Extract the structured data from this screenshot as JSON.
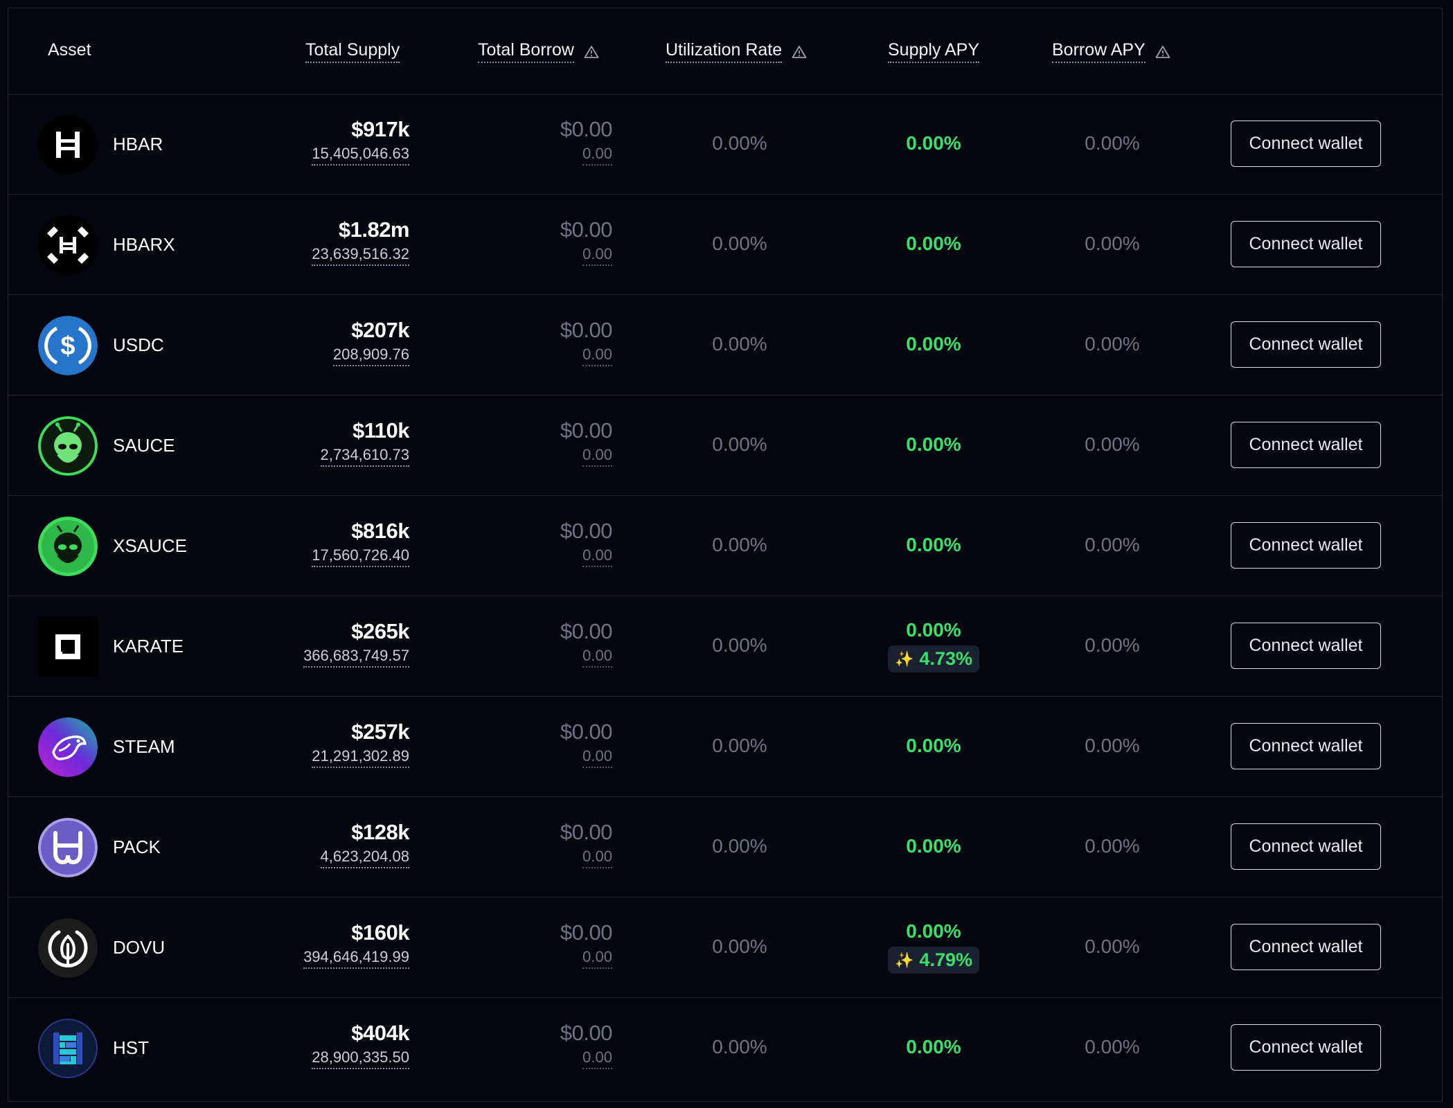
{
  "header": {
    "asset": "Asset",
    "total_supply": "Total Supply",
    "total_borrow": "Total Borrow",
    "utilization_rate": "Utilization Rate",
    "supply_apy": "Supply APY",
    "borrow_apy": "Borrow APY"
  },
  "button_label": "Connect wallet",
  "colors": {
    "background": "#02050f",
    "accent_green": "#39e06a",
    "muted": "#6d7585",
    "border": "#1f2636"
  },
  "rows": [
    {
      "name": "HBAR",
      "icon": "hbar-icon",
      "supply_usd": "$917k",
      "supply_amount": "15,405,046.63",
      "borrow_usd": "$0.00",
      "borrow_amount": "0.00",
      "utilization": "0.00%",
      "supply_apy": "0.00%",
      "bonus_apy": "",
      "borrow_apy": "0.00%"
    },
    {
      "name": "HBARX",
      "icon": "hbarx-icon",
      "supply_usd": "$1.82m",
      "supply_amount": "23,639,516.32",
      "borrow_usd": "$0.00",
      "borrow_amount": "0.00",
      "utilization": "0.00%",
      "supply_apy": "0.00%",
      "bonus_apy": "",
      "borrow_apy": "0.00%"
    },
    {
      "name": "USDC",
      "icon": "usdc-icon",
      "supply_usd": "$207k",
      "supply_amount": "208,909.76",
      "borrow_usd": "$0.00",
      "borrow_amount": "0.00",
      "utilization": "0.00%",
      "supply_apy": "0.00%",
      "bonus_apy": "",
      "borrow_apy": "0.00%"
    },
    {
      "name": "SAUCE",
      "icon": "sauce-icon",
      "supply_usd": "$110k",
      "supply_amount": "2,734,610.73",
      "borrow_usd": "$0.00",
      "borrow_amount": "0.00",
      "utilization": "0.00%",
      "supply_apy": "0.00%",
      "bonus_apy": "",
      "borrow_apy": "0.00%"
    },
    {
      "name": "XSAUCE",
      "icon": "xsauce-icon",
      "supply_usd": "$816k",
      "supply_amount": "17,560,726.40",
      "borrow_usd": "$0.00",
      "borrow_amount": "0.00",
      "utilization": "0.00%",
      "supply_apy": "0.00%",
      "bonus_apy": "",
      "borrow_apy": "0.00%"
    },
    {
      "name": "KARATE",
      "icon": "karate-icon",
      "supply_usd": "$265k",
      "supply_amount": "366,683,749.57",
      "borrow_usd": "$0.00",
      "borrow_amount": "0.00",
      "utilization": "0.00%",
      "supply_apy": "0.00%",
      "bonus_apy": "4.73%",
      "borrow_apy": "0.00%"
    },
    {
      "name": "STEAM",
      "icon": "steam-icon",
      "supply_usd": "$257k",
      "supply_amount": "21,291,302.89",
      "borrow_usd": "$0.00",
      "borrow_amount": "0.00",
      "utilization": "0.00%",
      "supply_apy": "0.00%",
      "bonus_apy": "",
      "borrow_apy": "0.00%"
    },
    {
      "name": "PACK",
      "icon": "pack-icon",
      "supply_usd": "$128k",
      "supply_amount": "4,623,204.08",
      "borrow_usd": "$0.00",
      "borrow_amount": "0.00",
      "utilization": "0.00%",
      "supply_apy": "0.00%",
      "bonus_apy": "",
      "borrow_apy": "0.00%"
    },
    {
      "name": "DOVU",
      "icon": "dovu-icon",
      "supply_usd": "$160k",
      "supply_amount": "394,646,419.99",
      "borrow_usd": "$0.00",
      "borrow_amount": "0.00",
      "utilization": "0.00%",
      "supply_apy": "0.00%",
      "bonus_apy": "4.79%",
      "borrow_apy": "0.00%"
    },
    {
      "name": "HST",
      "icon": "hst-icon",
      "supply_usd": "$404k",
      "supply_amount": "28,900,335.50",
      "borrow_usd": "$0.00",
      "borrow_amount": "0.00",
      "utilization": "0.00%",
      "supply_apy": "0.00%",
      "bonus_apy": "",
      "borrow_apy": "0.00%"
    }
  ]
}
